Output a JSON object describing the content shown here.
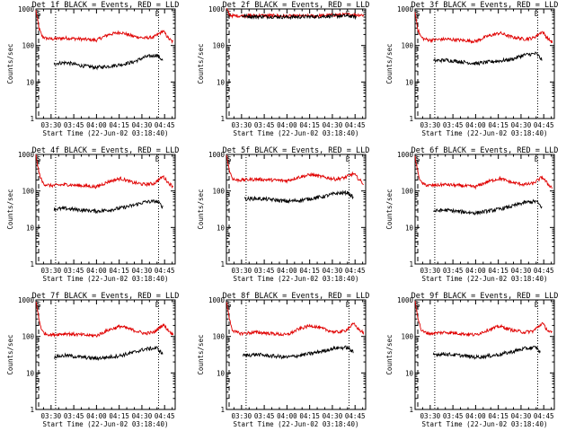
{
  "colors": {
    "events": "#000000",
    "lld": "#e00000",
    "axes": "#000000",
    "background": "#ffffff"
  },
  "common": {
    "xlabel": "Start Time (22-Jun-02 03:18:40)",
    "ylabel": "Counts/sec",
    "ytick_labels": [
      "1",
      "10",
      "100",
      "1000"
    ],
    "xtick_labels": [
      "03:30",
      "03:45",
      "04:00",
      "04:15",
      "04:30",
      "04:45"
    ],
    "flag_left": "S",
    "flag_right": "E"
  },
  "chart_data": [
    {
      "type": "line",
      "title": "Det 1f BLACK = Events, RED = LLD",
      "xlabel": "Start Time (22-Jun-02 03:18:40)",
      "ylabel": "Counts/sec",
      "ylog": true,
      "ylim": [
        1,
        1000
      ],
      "xlim": [
        "03:20",
        "04:52"
      ],
      "vlines": [
        "03:33",
        "04:41"
      ],
      "lld": {
        "t": [
          "03:20",
          "03:22",
          "03:24",
          "03:26",
          "03:30",
          "03:40",
          "03:50",
          "04:00",
          "04:08",
          "04:16",
          "04:24",
          "04:32",
          "04:38",
          "04:44",
          "04:48",
          "04:51"
        ],
        "v": [
          900,
          300,
          180,
          160,
          150,
          160,
          150,
          140,
          200,
          230,
          180,
          160,
          170,
          250,
          150,
          120
        ]
      },
      "events": {
        "t": [
          "03:32",
          "03:40",
          "03:50",
          "04:00",
          "04:08",
          "04:16",
          "04:24",
          "04:32",
          "04:40",
          "04:44"
        ],
        "v": [
          32,
          34,
          28,
          25,
          27,
          30,
          35,
          48,
          55,
          38
        ]
      }
    },
    {
      "type": "line",
      "title": "Det 2f BLACK = Events, RED = LLD",
      "xlabel": "Start Time (22-Jun-02 03:18:40)",
      "ylabel": "Counts/sec",
      "ylog": true,
      "ylim": [
        1,
        1000
      ],
      "xlim": [
        "03:20",
        "04:52"
      ],
      "vlines": [],
      "lld": {
        "t": [
          "03:20",
          "03:22",
          "03:24",
          "03:30",
          "03:40",
          "03:50",
          "04:00",
          "04:10",
          "04:20",
          "04:30",
          "04:40",
          "04:48",
          "04:51"
        ],
        "v": [
          1000,
          700,
          650,
          650,
          660,
          660,
          640,
          640,
          650,
          680,
          700,
          690,
          680
        ]
      },
      "events": {
        "t": [
          "03:30",
          "03:40",
          "03:50",
          "04:00",
          "04:10",
          "04:20",
          "04:30",
          "04:40",
          "04:46"
        ],
        "v": [
          640,
          620,
          620,
          600,
          610,
          620,
          640,
          650,
          600
        ]
      }
    },
    {
      "type": "line",
      "title": "Det 3f BLACK = Events, RED = LLD",
      "xlabel": "Start Time (22-Jun-02 03:18:40)",
      "ylabel": "Counts/sec",
      "ylog": true,
      "ylim": [
        1,
        1000
      ],
      "xlim": [
        "03:20",
        "04:52"
      ],
      "vlines": [
        "03:33",
        "04:41"
      ],
      "lld": {
        "t": [
          "03:20",
          "03:22",
          "03:24",
          "03:26",
          "03:30",
          "03:40",
          "03:50",
          "04:00",
          "04:08",
          "04:16",
          "04:24",
          "04:32",
          "04:38",
          "04:44",
          "04:48",
          "04:51"
        ],
        "v": [
          800,
          260,
          170,
          150,
          140,
          150,
          140,
          130,
          180,
          220,
          170,
          150,
          160,
          240,
          150,
          120
        ]
      },
      "events": {
        "t": [
          "03:32",
          "03:40",
          "03:50",
          "04:00",
          "04:08",
          "04:16",
          "04:24",
          "04:32",
          "04:40",
          "04:44"
        ],
        "v": [
          38,
          40,
          36,
          32,
          35,
          38,
          42,
          55,
          60,
          40
        ]
      }
    },
    {
      "type": "line",
      "title": "Det 4f BLACK = Events, RED = LLD",
      "xlabel": "Start Time (22-Jun-02 03:18:40)",
      "ylabel": "Counts/sec",
      "ylog": true,
      "ylim": [
        1,
        1000
      ],
      "xlim": [
        "03:20",
        "04:52"
      ],
      "vlines": [
        "03:33",
        "04:41"
      ],
      "lld": {
        "t": [
          "03:20",
          "03:22",
          "03:24",
          "03:26",
          "03:30",
          "03:40",
          "03:50",
          "04:00",
          "04:08",
          "04:16",
          "04:24",
          "04:32",
          "04:38",
          "04:44",
          "04:48",
          "04:51"
        ],
        "v": [
          900,
          320,
          180,
          150,
          140,
          150,
          140,
          130,
          180,
          220,
          170,
          150,
          160,
          250,
          160,
          130
        ]
      },
      "events": {
        "t": [
          "03:32",
          "03:40",
          "03:50",
          "04:00",
          "04:08",
          "04:16",
          "04:24",
          "04:32",
          "04:40",
          "04:44"
        ],
        "v": [
          32,
          33,
          30,
          28,
          30,
          34,
          40,
          50,
          52,
          36
        ]
      }
    },
    {
      "type": "line",
      "title": "Det 5f BLACK = Events, RED = LLD",
      "xlabel": "Start Time (22-Jun-02 03:18:40)",
      "ylabel": "Counts/sec",
      "ylog": true,
      "ylim": [
        1,
        1000
      ],
      "xlim": [
        "03:20",
        "04:52"
      ],
      "vlines": [
        "03:33",
        "04:41"
      ],
      "lld": {
        "t": [
          "03:20",
          "03:22",
          "03:24",
          "03:26",
          "03:30",
          "03:40",
          "03:50",
          "04:00",
          "04:08",
          "04:16",
          "04:24",
          "04:32",
          "04:38",
          "04:44",
          "04:48",
          "04:51"
        ],
        "v": [
          1000,
          360,
          220,
          200,
          200,
          210,
          200,
          190,
          240,
          280,
          240,
          210,
          230,
          300,
          200,
          150
        ]
      },
      "events": {
        "t": [
          "03:32",
          "03:40",
          "03:50",
          "04:00",
          "04:08",
          "04:16",
          "04:24",
          "04:32",
          "04:40",
          "04:44"
        ],
        "v": [
          60,
          62,
          58,
          52,
          55,
          62,
          70,
          85,
          90,
          65
        ]
      }
    },
    {
      "type": "line",
      "title": "Det 6f BLACK = Events, RED = LLD",
      "xlabel": "Start Time (22-Jun-02 03:18:40)",
      "ylabel": "Counts/sec",
      "ylog": true,
      "ylim": [
        1,
        1000
      ],
      "xlim": [
        "03:20",
        "04:52"
      ],
      "vlines": [
        "03:33",
        "04:41"
      ],
      "lld": {
        "t": [
          "03:20",
          "03:22",
          "03:24",
          "03:26",
          "03:30",
          "03:40",
          "03:50",
          "04:00",
          "04:08",
          "04:16",
          "04:24",
          "04:32",
          "04:38",
          "04:44",
          "04:48",
          "04:51"
        ],
        "v": [
          850,
          300,
          170,
          150,
          140,
          150,
          140,
          130,
          180,
          220,
          170,
          150,
          160,
          240,
          150,
          120
        ]
      },
      "events": {
        "t": [
          "03:32",
          "03:40",
          "03:50",
          "04:00",
          "04:08",
          "04:16",
          "04:24",
          "04:32",
          "04:40",
          "04:44"
        ],
        "v": [
          28,
          30,
          27,
          25,
          28,
          32,
          38,
          48,
          52,
          35
        ]
      }
    },
    {
      "type": "line",
      "title": "Det 7f BLACK = Events, RED = LLD",
      "xlabel": "Start Time (22-Jun-02 03:18:40)",
      "ylabel": "Counts/sec",
      "ylog": true,
      "ylim": [
        1,
        1000
      ],
      "xlim": [
        "03:20",
        "04:52"
      ],
      "vlines": [
        "03:33",
        "04:41"
      ],
      "lld": {
        "t": [
          "03:20",
          "03:22",
          "03:24",
          "03:26",
          "03:30",
          "03:40",
          "03:50",
          "04:00",
          "04:08",
          "04:16",
          "04:24",
          "04:32",
          "04:38",
          "04:44",
          "04:48",
          "04:51"
        ],
        "v": [
          900,
          300,
          140,
          120,
          110,
          120,
          110,
          105,
          150,
          190,
          150,
          120,
          130,
          210,
          140,
          110
        ]
      },
      "events": {
        "t": [
          "03:32",
          "03:40",
          "03:50",
          "04:00",
          "04:08",
          "04:16",
          "04:24",
          "04:32",
          "04:40",
          "04:44"
        ],
        "v": [
          28,
          30,
          27,
          25,
          27,
          30,
          36,
          45,
          48,
          32
        ]
      }
    },
    {
      "type": "line",
      "title": "Det 8f BLACK = Events, RED = LLD",
      "xlabel": "Start Time (22-Jun-02 03:18:40)",
      "ylabel": "Counts/sec",
      "ylog": true,
      "ylim": [
        1,
        1000
      ],
      "xlim": [
        "03:20",
        "04:52"
      ],
      "vlines": [
        "03:33",
        "04:41"
      ],
      "lld": {
        "t": [
          "03:20",
          "03:22",
          "03:24",
          "03:26",
          "03:30",
          "03:40",
          "03:50",
          "04:00",
          "04:08",
          "04:16",
          "04:24",
          "04:32",
          "04:38",
          "04:44",
          "04:48",
          "04:51"
        ],
        "v": [
          900,
          300,
          150,
          130,
          120,
          130,
          120,
          110,
          160,
          200,
          160,
          130,
          140,
          220,
          150,
          120
        ]
      },
      "events": {
        "t": [
          "03:31",
          "03:40",
          "03:50",
          "04:00",
          "04:08",
          "04:16",
          "04:24",
          "04:32",
          "04:40",
          "04:44"
        ],
        "v": [
          30,
          32,
          29,
          27,
          30,
          34,
          40,
          48,
          50,
          36
        ]
      }
    },
    {
      "type": "line",
      "title": "Det 9f BLACK = Events, RED = LLD",
      "xlabel": "Start Time (22-Jun-02 03:18:40)",
      "ylabel": "Counts/sec",
      "ylog": true,
      "ylim": [
        1,
        1000
      ],
      "xlim": [
        "03:20",
        "04:52"
      ],
      "vlines": [
        "03:33",
        "04:41"
      ],
      "lld": {
        "t": [
          "03:20",
          "03:22",
          "03:24",
          "03:26",
          "03:30",
          "03:40",
          "03:50",
          "04:00",
          "04:08",
          "04:16",
          "04:24",
          "04:32",
          "04:38",
          "04:44",
          "04:48",
          "04:51"
        ],
        "v": [
          900,
          320,
          150,
          130,
          120,
          130,
          120,
          110,
          150,
          190,
          150,
          130,
          140,
          230,
          140,
          120
        ]
      },
      "events": {
        "t": [
          "03:32",
          "03:40",
          "03:50",
          "04:00",
          "04:08",
          "04:16",
          "04:24",
          "04:32",
          "04:40",
          "04:43",
          "04:43"
        ],
        "v": [
          32,
          33,
          30,
          27,
          29,
          32,
          38,
          46,
          50,
          35,
          1
        ]
      }
    }
  ]
}
